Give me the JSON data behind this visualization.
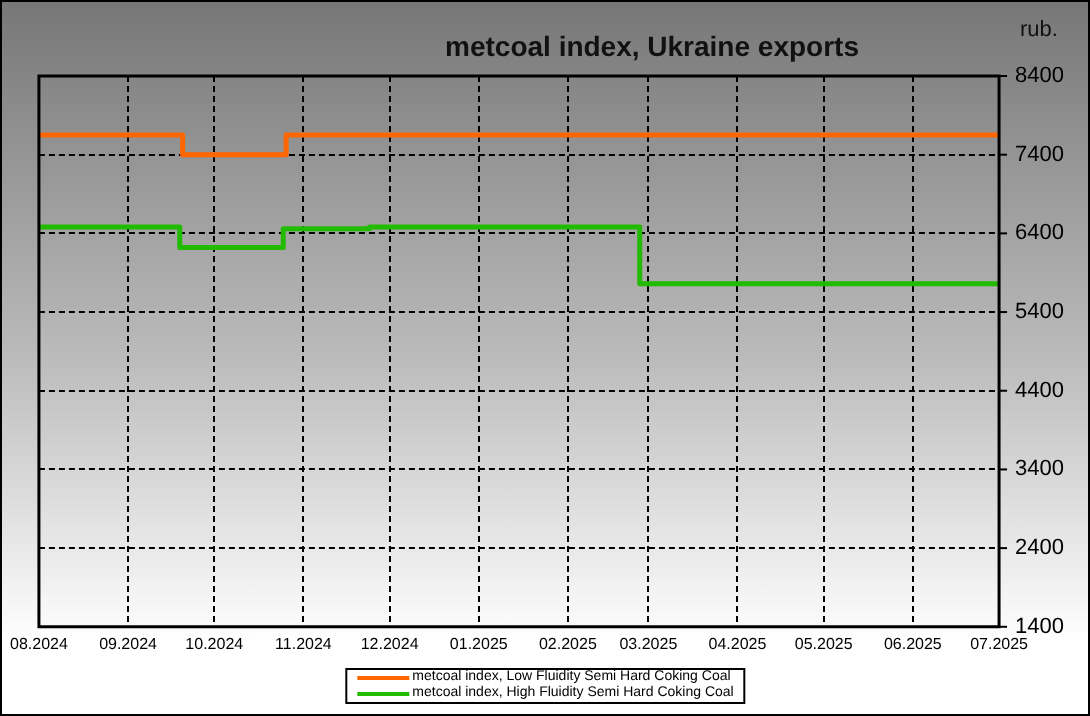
{
  "chart_data": {
    "type": "step",
    "title": "metcoal index, Ukraine exports",
    "ylabel": "rub.",
    "series": [
      {
        "name": "metcoal index, Low Fluidity Semi Hard Coking Coal",
        "color": "#ff6600",
        "x": [
          "2024-08-01",
          "2024-09-20",
          "2024-10-26",
          "2025-07-01"
        ],
        "values": [
          7650,
          7400,
          7650,
          7650
        ]
      },
      {
        "name": "metcoal index, High Fluidity Semi Hard Coking Coal",
        "color": "#22bb00",
        "x": [
          "2024-08-01",
          "2024-09-19",
          "2024-10-25",
          "2024-11-24",
          "2025-02-26",
          "2025-07-01"
        ],
        "values": [
          6480,
          6220,
          6460,
          6480,
          5760,
          5760
        ]
      }
    ],
    "xlim": [
      "2024-08-01",
      "2025-07-01"
    ],
    "xticks": [
      {
        "value": "2024-08-01",
        "label": "08.2024"
      },
      {
        "value": "2024-09-01",
        "label": "09.2024"
      },
      {
        "value": "2024-10-01",
        "label": "10.2024"
      },
      {
        "value": "2024-11-01",
        "label": "11.2024"
      },
      {
        "value": "2024-12-01",
        "label": "12.2024"
      },
      {
        "value": "2025-01-01",
        "label": "01.2025"
      },
      {
        "value": "2025-02-01",
        "label": "02.2025"
      },
      {
        "value": "2025-03-01",
        "label": "03.2025"
      },
      {
        "value": "2025-04-01",
        "label": "04.2025"
      },
      {
        "value": "2025-05-01",
        "label": "05.2025"
      },
      {
        "value": "2025-06-01",
        "label": "06.2025"
      },
      {
        "value": "2025-07-01",
        "label": "07.2025"
      }
    ],
    "ylim": [
      1400,
      8400
    ],
    "yticks": [
      1400,
      2400,
      3400,
      4400,
      5400,
      6400,
      7400,
      8400
    ],
    "grid": true,
    "legend": "bottom",
    "line_style": "solid",
    "marker": "none"
  }
}
